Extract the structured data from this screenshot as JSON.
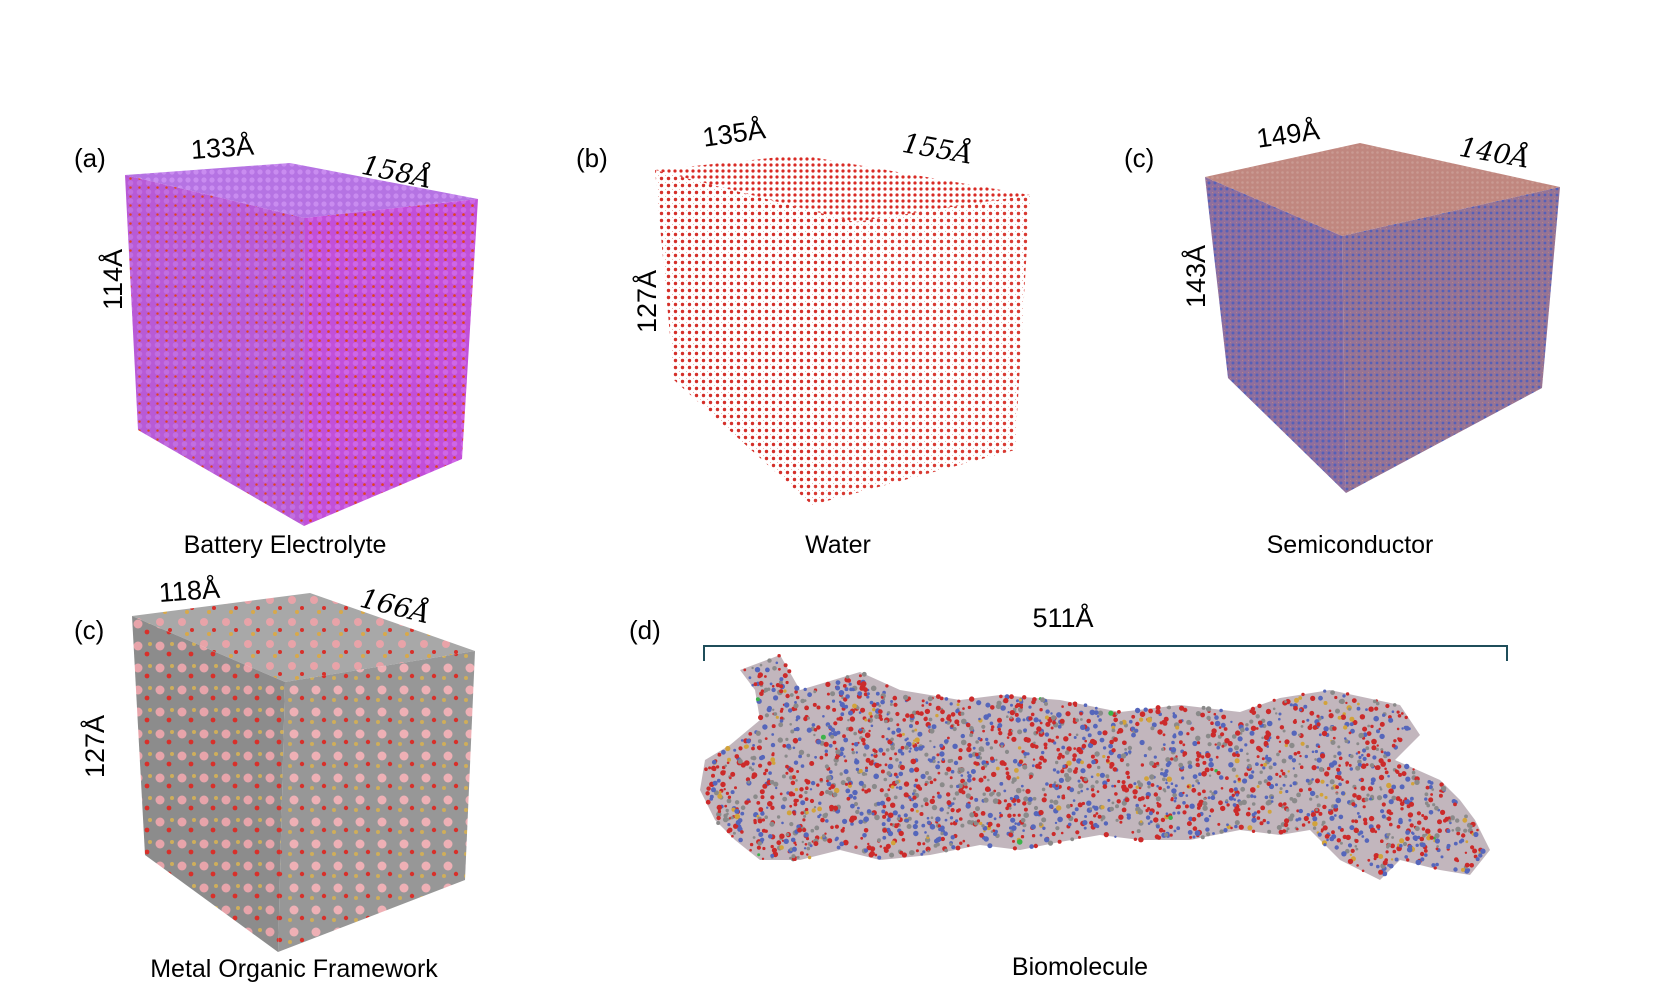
{
  "panels": [
    {
      "id": "a",
      "label": "(a)",
      "caption": "Battery Electrolyte",
      "dims": [
        "133Å",
        "158Å",
        "114Å"
      ],
      "colors": {
        "top": "#b573e3",
        "left": "#b85ad6",
        "right": "#c24fd9",
        "accent": "#e0451c"
      }
    },
    {
      "id": "b",
      "label": "(b)",
      "caption": "Water",
      "dims": [
        "135Å",
        "155Å",
        "127Å"
      ],
      "colors": {
        "top": "#d92a24",
        "left": "#d4302a",
        "right": "#d83a32",
        "accent": "#ffffff"
      }
    },
    {
      "id": "c",
      "label": "(c)",
      "caption": "Semiconductor",
      "dims": [
        "149Å",
        "140Å",
        "143Å"
      ],
      "colors": {
        "top": "#c0877f",
        "left": "#8f6f9e",
        "right": "#977494",
        "accent": "#5560b8"
      }
    },
    {
      "id": "c2",
      "label": "(c)",
      "caption": "Metal Organic Framework",
      "dims": [
        "118Å",
        "166Å",
        "127Å"
      ],
      "colors": {
        "top": "#9e9e9e",
        "left": "#8c8c8c",
        "right": "#979797",
        "accent": "#d8302a"
      }
    },
    {
      "id": "d",
      "label": "(d)",
      "caption": "Biomolecule",
      "dims": [
        "511Å"
      ],
      "colors": {
        "bracket": "#1f4e5a",
        "atoms": [
          "#cc2a2a",
          "#5566bb",
          "#8a8a8a",
          "#d2a33a",
          "#3bb34a"
        ]
      }
    }
  ]
}
